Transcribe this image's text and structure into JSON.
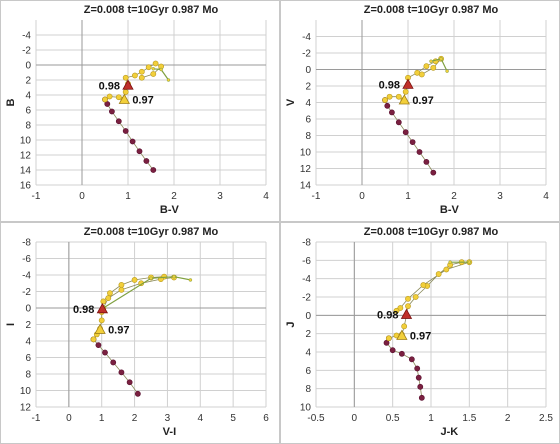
{
  "chart_data": [
    {
      "type": "scatter",
      "title": "Z=0.008 t=10Gyr 0.987 Mo",
      "xlabel": "B-V",
      "ylabel": "B",
      "xlim": [
        -1,
        4
      ],
      "ylim": [
        16,
        -6
      ],
      "xticks": [
        "-1",
        "0",
        "1",
        "2",
        "3",
        "4"
      ],
      "yticks": [
        "-4",
        "-2",
        "0",
        "2",
        "4",
        "6",
        "8",
        "10",
        "12",
        "14",
        "16"
      ],
      "grid": true,
      "series": [
        {
          "color": "#7a2040",
          "points": [
            [
              1.55,
              14.0
            ],
            [
              1.4,
              12.8
            ],
            [
              1.25,
              11.5
            ],
            [
              1.1,
              10.2
            ],
            [
              0.95,
              8.8
            ],
            [
              0.8,
              7.5
            ],
            [
              0.65,
              6.2
            ],
            [
              0.55,
              5.2
            ],
            [
              0.5,
              4.6
            ]
          ]
        },
        {
          "color": "#f2cf3a",
          "points": [
            [
              0.5,
              4.6
            ],
            [
              0.6,
              4.2
            ],
            [
              0.8,
              4.3
            ],
            [
              0.9,
              4.6
            ],
            [
              0.95,
              3.6
            ],
            [
              1.0,
              2.5
            ],
            [
              0.95,
              1.7
            ],
            [
              1.15,
              1.4
            ],
            [
              1.3,
              0.9
            ],
            [
              1.45,
              0.3
            ],
            [
              1.6,
              -0.2
            ],
            [
              1.72,
              0.2
            ],
            [
              1.55,
              1.2
            ],
            [
              1.3,
              1.7
            ]
          ]
        },
        {
          "color": "#7fa040",
          "points": [
            [
              1.55,
              0.5
            ],
            [
              1.72,
              0.6
            ],
            [
              1.88,
              2.0
            ]
          ]
        }
      ],
      "markers": [
        {
          "label": "0.98",
          "shape": "triangle",
          "color": "#c0302a",
          "x": 1.0,
          "y": 2.7
        },
        {
          "label": "0.97",
          "shape": "triangle",
          "color": "#f2cf3a",
          "x": 0.92,
          "y": 4.6
        }
      ]
    },
    {
      "type": "scatter",
      "title": "Z=0.008 t=10Gyr 0.987 Mo",
      "xlabel": "B-V",
      "ylabel": "V",
      "xlim": [
        -1,
        4
      ],
      "ylim": [
        14,
        -6
      ],
      "xticks": [
        "-1",
        "0",
        "1",
        "2",
        "3",
        "4"
      ],
      "yticks": [
        "-4",
        "-2",
        "0",
        "2",
        "4",
        "6",
        "8",
        "10",
        "12",
        "14"
      ],
      "grid": true,
      "series": [
        {
          "color": "#7a2040",
          "points": [
            [
              1.55,
              12.5
            ],
            [
              1.4,
              11.2
            ],
            [
              1.25,
              10.0
            ],
            [
              1.1,
              8.8
            ],
            [
              0.95,
              7.6
            ],
            [
              0.8,
              6.4
            ],
            [
              0.65,
              5.2
            ],
            [
              0.55,
              4.4
            ],
            [
              0.5,
              3.7
            ]
          ]
        },
        {
          "color": "#f2cf3a",
          "points": [
            [
              0.5,
              3.7
            ],
            [
              0.6,
              3.3
            ],
            [
              0.8,
              3.3
            ],
            [
              0.9,
              3.7
            ],
            [
              0.95,
              2.7
            ],
            [
              1.0,
              1.8
            ],
            [
              1.0,
              1.0
            ],
            [
              1.2,
              0.4
            ],
            [
              1.4,
              -0.4
            ],
            [
              1.6,
              -1.0
            ],
            [
              1.72,
              -1.3
            ],
            [
              1.55,
              -0.2
            ],
            [
              1.3,
              0.6
            ]
          ]
        },
        {
          "color": "#7fa040",
          "points": [
            [
              1.5,
              -1.0
            ],
            [
              1.72,
              -1.3
            ],
            [
              1.85,
              0.2
            ]
          ]
        }
      ],
      "markers": [
        {
          "label": "0.98",
          "shape": "triangle",
          "color": "#c0302a",
          "x": 1.0,
          "y": 1.8
        },
        {
          "label": "0.97",
          "shape": "triangle",
          "color": "#f2cf3a",
          "x": 0.92,
          "y": 3.7
        }
      ]
    },
    {
      "type": "scatter",
      "title": "Z=0.008 t=10Gyr 0.987 Mo",
      "xlabel": "V-I",
      "ylabel": "I",
      "xlim": [
        -1,
        6
      ],
      "ylim": [
        12,
        -8
      ],
      "xticks": [
        "-1",
        "0",
        "1",
        "2",
        "3",
        "4",
        "5",
        "6"
      ],
      "yticks": [
        "-8",
        "-6",
        "-4",
        "-2",
        "0",
        "2",
        "4",
        "6",
        "8",
        "10",
        "12"
      ],
      "grid": true,
      "series": [
        {
          "color": "#7a2040",
          "points": [
            [
              2.1,
              10.4
            ],
            [
              1.85,
              9.0
            ],
            [
              1.6,
              7.8
            ],
            [
              1.35,
              6.6
            ],
            [
              1.1,
              5.4
            ],
            [
              0.9,
              4.5
            ],
            [
              0.75,
              3.8
            ]
          ]
        },
        {
          "color": "#f2cf3a",
          "points": [
            [
              0.75,
              3.8
            ],
            [
              0.85,
              3.2
            ],
            [
              0.95,
              2.5
            ],
            [
              1.0,
              1.5
            ],
            [
              1.0,
              0.5
            ],
            [
              1.05,
              -0.8
            ],
            [
              1.25,
              -1.8
            ],
            [
              1.6,
              -2.8
            ],
            [
              2.0,
              -3.4
            ],
            [
              2.5,
              -3.7
            ],
            [
              2.9,
              -3.8
            ],
            [
              3.2,
              -3.7
            ],
            [
              2.8,
              -3.5
            ],
            [
              2.2,
              -3.0
            ],
            [
              1.6,
              -2.2
            ],
            [
              1.2,
              -1.2
            ],
            [
              1.05,
              0.0
            ]
          ]
        },
        {
          "color": "#7fa040",
          "points": [
            [
              1.05,
              0.0
            ],
            [
              2.5,
              -3.6
            ],
            [
              3.2,
              -3.8
            ],
            [
              3.7,
              -3.4
            ]
          ]
        }
      ],
      "markers": [
        {
          "label": "0.98",
          "shape": "triangle",
          "color": "#c0302a",
          "x": 1.02,
          "y": 0.1
        },
        {
          "label": "0.97",
          "shape": "triangle",
          "color": "#f2cf3a",
          "x": 0.95,
          "y": 2.6
        }
      ]
    },
    {
      "type": "scatter",
      "title": "Z=0.008 t=10Gyr 0.987 Mo",
      "xlabel": "J-K",
      "ylabel": "J",
      "xlim": [
        -0.5,
        2.5
      ],
      "ylim": [
        10,
        -8
      ],
      "xticks": [
        "-0.5",
        "0",
        "0.5",
        "1",
        "1.5",
        "2",
        "2.5"
      ],
      "yticks": [
        "-8",
        "-6",
        "-4",
        "-2",
        "0",
        "2",
        "4",
        "6",
        "8",
        "10"
      ],
      "grid": true,
      "series": [
        {
          "color": "#7a2040",
          "points": [
            [
              0.88,
              9.0
            ],
            [
              0.86,
              7.8
            ],
            [
              0.84,
              6.8
            ],
            [
              0.82,
              5.8
            ],
            [
              0.75,
              4.8
            ],
            [
              0.62,
              4.2
            ],
            [
              0.5,
              3.8
            ],
            [
              0.42,
              3.0
            ],
            [
              0.45,
              2.5
            ]
          ]
        },
        {
          "color": "#f2cf3a",
          "points": [
            [
              0.45,
              2.5
            ],
            [
              0.55,
              2.2
            ],
            [
              0.62,
              2.1
            ],
            [
              0.65,
              1.2
            ],
            [
              0.68,
              0.0
            ],
            [
              0.7,
              -1.0
            ],
            [
              0.8,
              -2.0
            ],
            [
              0.95,
              -3.2
            ],
            [
              1.1,
              -4.5
            ],
            [
              1.25,
              -5.5
            ],
            [
              1.4,
              -5.8
            ],
            [
              1.5,
              -5.8
            ],
            [
              1.2,
              -5.0
            ],
            [
              0.9,
              -3.3
            ],
            [
              0.7,
              -1.8
            ],
            [
              0.6,
              -0.8
            ],
            [
              0.55,
              -0.5
            ]
          ]
        },
        {
          "color": "#7fa040",
          "points": [
            [
              1.25,
              -5.8
            ],
            [
              1.5,
              -5.8
            ]
          ]
        }
      ],
      "markers": [
        {
          "label": "0.98",
          "shape": "triangle",
          "color": "#c0302a",
          "x": 0.68,
          "y": -0.1
        },
        {
          "label": "0.97",
          "shape": "triangle",
          "color": "#f2cf3a",
          "x": 0.62,
          "y": 2.2
        }
      ]
    }
  ]
}
